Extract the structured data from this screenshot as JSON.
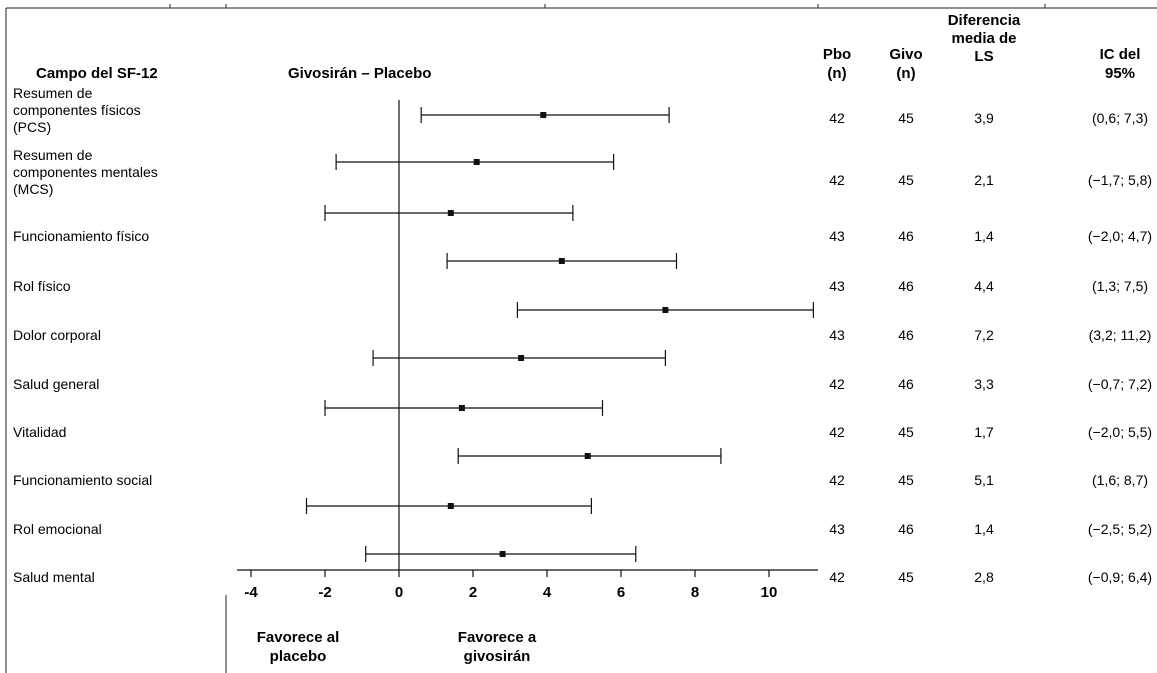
{
  "chart_data": {
    "type": "forest",
    "title": "Givosirán – Placebo",
    "columns": {
      "label": "Campo del SF-12",
      "pbo": [
        "Pbo",
        "(n)"
      ],
      "givo": [
        "Givo",
        "(n)"
      ],
      "diff": [
        "Diferencia",
        "media de",
        "LS"
      ],
      "ci": [
        "IC del",
        "95%"
      ]
    },
    "rows": [
      {
        "label": [
          "Resumen de",
          "componentes físicos",
          "(PCS)"
        ],
        "pbo": "42",
        "givo": "45",
        "diff": "3,9",
        "ci": "(0,6; 7,3)",
        "estimate": 3.9,
        "lower": 0.6,
        "upper": 7.3
      },
      {
        "label": [
          "Resumen de",
          "componentes mentales",
          "(MCS)"
        ],
        "pbo": "42",
        "givo": "45",
        "diff": "2,1",
        "ci": "(−1,7; 5,8)",
        "estimate": 2.1,
        "lower": -1.7,
        "upper": 5.8
      },
      {
        "label": [
          "Funcionamiento físico"
        ],
        "pbo": "43",
        "givo": "46",
        "diff": "1,4",
        "ci": "(−2,0; 4,7)",
        "estimate": 1.4,
        "lower": -2.0,
        "upper": 4.7
      },
      {
        "label": [
          "Rol físico"
        ],
        "pbo": "43",
        "givo": "46",
        "diff": "4,4",
        "ci": "(1,3; 7,5)",
        "estimate": 4.4,
        "lower": 1.3,
        "upper": 7.5
      },
      {
        "label": [
          "Dolor corporal"
        ],
        "pbo": "43",
        "givo": "46",
        "diff": "7,2",
        "ci": "(3,2; 11,2)",
        "estimate": 7.2,
        "lower": 3.2,
        "upper": 11.2
      },
      {
        "label": [
          "Salud general"
        ],
        "pbo": "42",
        "givo": "46",
        "diff": "3,3",
        "ci": "(−0,7; 7,2)",
        "estimate": 3.3,
        "lower": -0.7,
        "upper": 7.2
      },
      {
        "label": [
          "Vitalidad"
        ],
        "pbo": "42",
        "givo": "45",
        "diff": "1,7",
        "ci": "(−2,0; 5,5)",
        "estimate": 1.7,
        "lower": -2.0,
        "upper": 5.5
      },
      {
        "label": [
          "Funcionamiento social"
        ],
        "pbo": "42",
        "givo": "45",
        "diff": "5,1",
        "ci": "(1,6; 8,7)",
        "estimate": 5.1,
        "lower": 1.6,
        "upper": 8.7
      },
      {
        "label": [
          "Rol emocional"
        ],
        "pbo": "43",
        "givo": "46",
        "diff": "1,4",
        "ci": "(−2,5; 5,2)",
        "estimate": 1.4,
        "lower": -2.5,
        "upper": 5.2
      },
      {
        "label": [
          "Salud mental"
        ],
        "pbo": "42",
        "givo": "45",
        "diff": "2,8",
        "ci": "(−0,9; 6,4)",
        "estimate": 2.8,
        "lower": -0.9,
        "upper": 6.4
      }
    ],
    "x_ticks": [
      -4,
      -2,
      0,
      2,
      4,
      6,
      8,
      10
    ],
    "xlim": [
      -4.4,
      11.3
    ],
    "reference_line": 0,
    "favors_left": [
      "Favorece al",
      "placebo"
    ],
    "favors_right": [
      "Favorece a",
      "givosirán"
    ],
    "colors": {
      "ink": "#111111",
      "frame": "#222222"
    }
  }
}
